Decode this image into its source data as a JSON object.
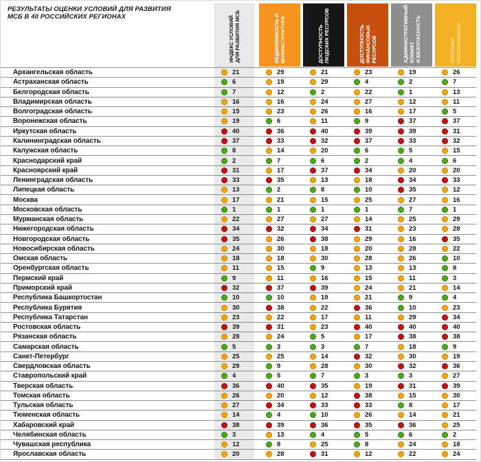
{
  "header": {
    "title_lines": [
      "РЕЗУЛЬТАТЫ ОЦЕНКИ УСЛОВИЙ ДЛЯ РАЗВИТИЯ",
      "МСБ В 40 РОССИЙСКИХ РЕГИОНАХ"
    ]
  },
  "status_colors": {
    "green": "#4DA81C",
    "yellow": "#F3A60B",
    "red": "#C41318"
  },
  "chart_data": {
    "type": "table",
    "title": "РЕЗУЛЬТАТЫ ОЦЕНКИ УСЛОВИЙ ДЛЯ РАЗВИТИЯ МСБ В 40 РОССИЙСКИХ РЕГИОНАХ",
    "value_meaning": "ранг региона от 1 до 40 по каждому показателю",
    "color_coding": {
      "green_max": 10,
      "yellow_max": 30,
      "red_min": 31
    },
    "columns": [
      {
        "label": "ИНДЕКС УСЛОВИЙ\nДЛЯ РАЗВИТИЯ МСБ",
        "bg": "#EAEAE8",
        "text_color": "#1a1a1a"
      },
      {
        "label": "НЕДВИЖИМОСТЬ И\nИНФРАСТРУКТУРА",
        "bg": "#F7941D",
        "text_color": "#FFFFFF"
      },
      {
        "label": "ДОСТУПНОСТЬ\nЛЮДСКИХ РЕСУРСОВ",
        "bg": "#161616",
        "text_color": "#FFFFFF"
      },
      {
        "label": "ДОСТУПНОСТЬ\nФИНАНСОВЫХ\nРЕСУРСОВ",
        "bg": "#C8500F",
        "text_color": "#FFFFFF"
      },
      {
        "label": "АДМИНИСТРАТИВНЫЙ\nКЛИМАТ\nИ БЕЗОПАСНОСТЬ",
        "bg": "#8E8E8E",
        "text_color": "#FFFFFF"
      },
      {
        "label": "СИСТЕМА\nПОСТАВЩИКОВ",
        "bg": "#F2B124",
        "text_color": "#FFE08A"
      }
    ],
    "rows": [
      {
        "region": "Архангельская область",
        "values": [
          21,
          29,
          21,
          23,
          19,
          26
        ]
      },
      {
        "region": "Астраханская область",
        "values": [
          6,
          19,
          29,
          4,
          2,
          7
        ]
      },
      {
        "region": "Белгородская область",
        "values": [
          7,
          12,
          2,
          22,
          1,
          13
        ]
      },
      {
        "region": "Владимирская область",
        "values": [
          16,
          16,
          24,
          27,
          12,
          11
        ]
      },
      {
        "region": "Волгоградская область",
        "values": [
          15,
          23,
          26,
          16,
          17,
          5
        ]
      },
      {
        "region": "Воронежская область",
        "values": [
          19,
          6,
          11,
          9,
          37,
          37
        ]
      },
      {
        "region": "Иркутская область",
        "values": [
          40,
          36,
          40,
          39,
          39,
          31
        ]
      },
      {
        "region": "Калининградская область",
        "values": [
          37,
          33,
          32,
          37,
          33,
          32
        ]
      },
      {
        "region": "Калужская область",
        "values": [
          8,
          14,
          20,
          6,
          5,
          15
        ]
      },
      {
        "region": "Краснодарский край",
        "values": [
          2,
          7,
          6,
          2,
          4,
          6
        ]
      },
      {
        "region": "Красноярский край",
        "values": [
          31,
          17,
          37,
          34,
          20,
          20
        ]
      },
      {
        "region": "Ленинградская область",
        "values": [
          33,
          35,
          13,
          18,
          34,
          33
        ]
      },
      {
        "region": "Липецкая область",
        "values": [
          13,
          2,
          8,
          10,
          35,
          12
        ]
      },
      {
        "region": "Москва",
        "values": [
          17,
          21,
          15,
          25,
          27,
          16
        ]
      },
      {
        "region": "Московская область",
        "values": [
          1,
          1,
          1,
          1,
          7,
          1
        ]
      },
      {
        "region": "Мурманская область",
        "values": [
          22,
          27,
          27,
          14,
          25,
          29
        ]
      },
      {
        "region": "Нижегородская область",
        "values": [
          34,
          32,
          34,
          31,
          23,
          28
        ]
      },
      {
        "region": "Новгородская область",
        "values": [
          35,
          26,
          38,
          29,
          16,
          35
        ]
      },
      {
        "region": "Новосибирская область",
        "values": [
          24,
          30,
          18,
          20,
          28,
          22
        ]
      },
      {
        "region": "Омская область",
        "values": [
          18,
          18,
          30,
          28,
          26,
          10
        ]
      },
      {
        "region": "Оренбургская область",
        "values": [
          11,
          15,
          9,
          13,
          13,
          8
        ]
      },
      {
        "region": "Пермский край",
        "values": [
          9,
          11,
          16,
          15,
          11,
          3
        ]
      },
      {
        "region": "Приморский край",
        "values": [
          32,
          37,
          39,
          24,
          21,
          14
        ]
      },
      {
        "region": "Республика Башкортостан",
        "values": [
          10,
          10,
          19,
          21,
          9,
          4
        ]
      },
      {
        "region": "Республика Бурятия",
        "values": [
          30,
          38,
          22,
          36,
          10,
          23
        ]
      },
      {
        "region": "Республика Татарстан",
        "values": [
          23,
          22,
          17,
          11,
          29,
          34
        ]
      },
      {
        "region": "Ростовская область",
        "values": [
          39,
          31,
          23,
          40,
          40,
          40
        ]
      },
      {
        "region": "Рязанская область",
        "values": [
          28,
          24,
          5,
          17,
          38,
          38
        ]
      },
      {
        "region": "Самарская область",
        "values": [
          5,
          3,
          3,
          7,
          18,
          9
        ]
      },
      {
        "region": "Санкт-Петербург",
        "values": [
          25,
          25,
          14,
          32,
          30,
          19
        ]
      },
      {
        "region": "Свердловская область",
        "values": [
          29,
          9,
          28,
          30,
          32,
          36
        ]
      },
      {
        "region": "Ставропольский край",
        "values": [
          4,
          5,
          7,
          3,
          3,
          27
        ]
      },
      {
        "region": "Тверская область",
        "values": [
          36,
          40,
          35,
          19,
          31,
          39
        ]
      },
      {
        "region": "Томская область",
        "values": [
          26,
          20,
          12,
          38,
          15,
          30
        ]
      },
      {
        "region": "Тульская область",
        "values": [
          27,
          34,
          33,
          33,
          8,
          17
        ]
      },
      {
        "region": "Тюменская область",
        "values": [
          14,
          4,
          10,
          26,
          14,
          21
        ]
      },
      {
        "region": "Хабаровский край",
        "values": [
          38,
          39,
          36,
          35,
          36,
          25
        ]
      },
      {
        "region": "Челябинская область",
        "values": [
          3,
          13,
          4,
          5,
          6,
          2
        ]
      },
      {
        "region": "Чувашская республика",
        "values": [
          12,
          8,
          25,
          8,
          24,
          18
        ]
      },
      {
        "region": "Ярославская область",
        "values": [
          20,
          28,
          31,
          12,
          22,
          24
        ]
      }
    ]
  }
}
